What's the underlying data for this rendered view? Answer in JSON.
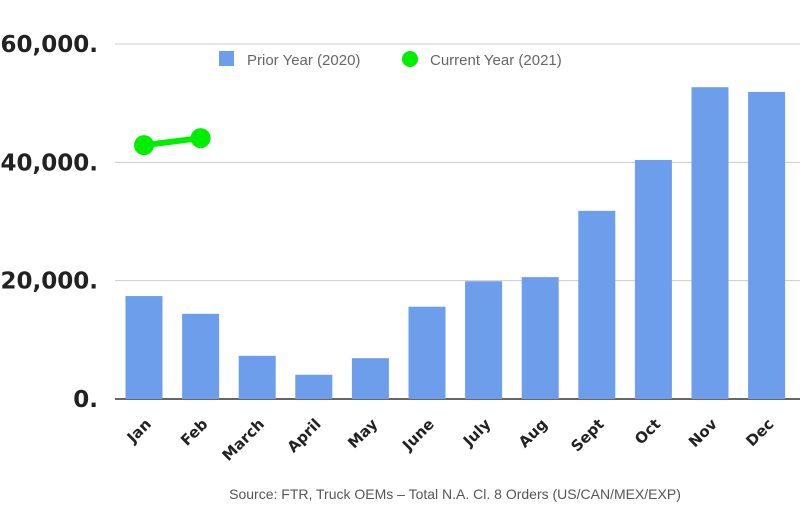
{
  "chart_data": {
    "type": "bar",
    "categories": [
      "Jan",
      "Feb",
      "March",
      "April",
      "May",
      "June",
      "July",
      "Aug",
      "Sept",
      "Oct",
      "Nov",
      "Dec"
    ],
    "series": [
      {
        "name": "Prior Year (2020)",
        "kind": "bar",
        "color": "#6d9eeb",
        "values": [
          17400,
          14400,
          7300,
          4100,
          6900,
          15600,
          19900,
          20600,
          31800,
          40400,
          52700,
          51900
        ]
      },
      {
        "name": "Current Year (2021)",
        "kind": "line",
        "color": "#00ee00",
        "values": [
          42900,
          44100,
          null,
          null,
          null,
          null,
          null,
          null,
          null,
          null,
          null,
          null
        ]
      }
    ],
    "yticks": [
      "0.",
      "20,000.",
      "40,000.",
      "60,000."
    ],
    "ytick_values": [
      0,
      20000,
      40000,
      60000
    ],
    "ylim": [
      0,
      60000
    ],
    "grid": true,
    "legend": "top-center",
    "source": "Source: FTR, Truck OEMs – Total N.A. Cl. 8 Orders (US/CAN/MEX/EXP)"
  }
}
